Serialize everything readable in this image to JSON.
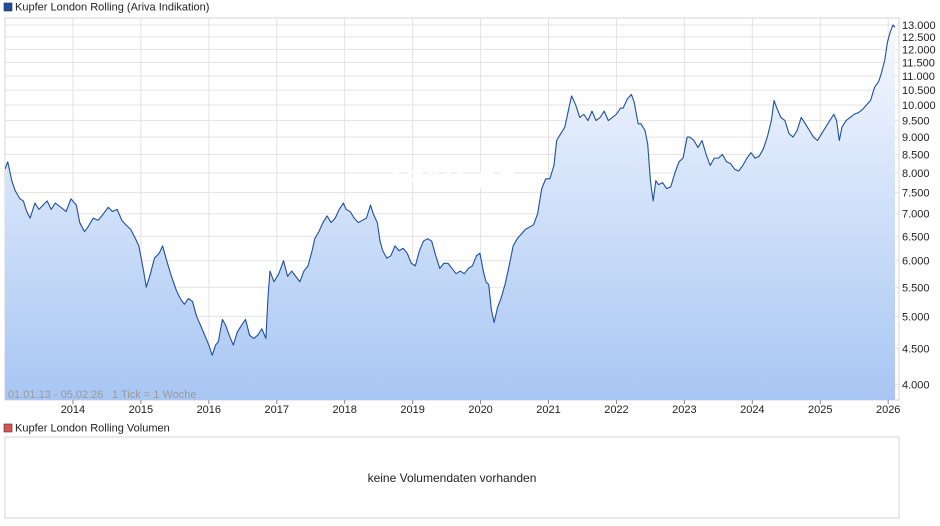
{
  "price_panel": {
    "legend_label": "Kupfer London Rolling (Ariva Indikation)",
    "legend_color": "#1f4f9c",
    "info_text": "01.01.13 - 05.02.26",
    "tick_text": "1 Tick = 1 Woche",
    "watermark": "ARIVA.DE"
  },
  "volume_panel": {
    "legend_label": "Kupfer London Rolling Volumen",
    "legend_color": "#d9534f",
    "message": "keine Volumendaten vorhanden"
  },
  "chart_data": {
    "type": "area",
    "x_tick_labels": [
      "2014",
      "2015",
      "2016",
      "2017",
      "2018",
      "2019",
      "2020",
      "2021",
      "2022",
      "2023",
      "2024",
      "2025",
      "2026"
    ],
    "y_tick_labels": [
      "4.000",
      "4.500",
      "5.000",
      "5.500",
      "6.000",
      "6.500",
      "7.000",
      "7.500",
      "8.000",
      "8.500",
      "9.000",
      "9.500",
      "10.000",
      "10.500",
      "11.000",
      "11.500",
      "12.000",
      "12.500",
      "13.000"
    ],
    "y_scale": "log",
    "ylim": [
      3800,
      13300
    ],
    "xlim": [
      2013.0,
      2026.1
    ],
    "grid": true,
    "line_color": "#1f4f9c",
    "fill_top_color": "#f6f9ff",
    "fill_bottom_color": "#a8c6f3",
    "series": [
      {
        "name": "Kupfer London Rolling (Ariva Indikation)",
        "points": [
          [
            2013.0,
            8100
          ],
          [
            2013.04,
            8300
          ],
          [
            2013.1,
            7800
          ],
          [
            2013.15,
            7550
          ],
          [
            2013.22,
            7350
          ],
          [
            2013.27,
            7300
          ],
          [
            2013.32,
            7050
          ],
          [
            2013.37,
            6900
          ],
          [
            2013.44,
            7250
          ],
          [
            2013.5,
            7100
          ],
          [
            2013.56,
            7200
          ],
          [
            2013.62,
            7300
          ],
          [
            2013.68,
            7100
          ],
          [
            2013.74,
            7250
          ],
          [
            2013.82,
            7150
          ],
          [
            2013.9,
            7050
          ],
          [
            2013.97,
            7350
          ],
          [
            2014.05,
            7200
          ],
          [
            2014.1,
            6800
          ],
          [
            2014.17,
            6600
          ],
          [
            2014.22,
            6700
          ],
          [
            2014.3,
            6900
          ],
          [
            2014.37,
            6850
          ],
          [
            2014.45,
            7000
          ],
          [
            2014.52,
            7150
          ],
          [
            2014.58,
            7050
          ],
          [
            2014.65,
            7100
          ],
          [
            2014.72,
            6850
          ],
          [
            2014.78,
            6750
          ],
          [
            2014.85,
            6650
          ],
          [
            2014.92,
            6450
          ],
          [
            2014.97,
            6300
          ],
          [
            2015.04,
            5800
          ],
          [
            2015.08,
            5500
          ],
          [
            2015.14,
            5750
          ],
          [
            2015.2,
            6050
          ],
          [
            2015.27,
            6150
          ],
          [
            2015.32,
            6300
          ],
          [
            2015.38,
            6000
          ],
          [
            2015.45,
            5700
          ],
          [
            2015.52,
            5450
          ],
          [
            2015.58,
            5300
          ],
          [
            2015.64,
            5200
          ],
          [
            2015.7,
            5300
          ],
          [
            2015.76,
            5250
          ],
          [
            2015.82,
            5000
          ],
          [
            2015.88,
            4850
          ],
          [
            2015.94,
            4700
          ],
          [
            2016.0,
            4550
          ],
          [
            2016.05,
            4400
          ],
          [
            2016.1,
            4550
          ],
          [
            2016.14,
            4600
          ],
          [
            2016.2,
            4950
          ],
          [
            2016.25,
            4850
          ],
          [
            2016.3,
            4700
          ],
          [
            2016.36,
            4550
          ],
          [
            2016.42,
            4750
          ],
          [
            2016.48,
            4850
          ],
          [
            2016.54,
            4950
          ],
          [
            2016.6,
            4700
          ],
          [
            2016.66,
            4650
          ],
          [
            2016.72,
            4700
          ],
          [
            2016.78,
            4800
          ],
          [
            2016.84,
            4650
          ],
          [
            2016.87,
            5300
          ],
          [
            2016.9,
            5800
          ],
          [
            2016.96,
            5600
          ],
          [
            2017.03,
            5750
          ],
          [
            2017.1,
            6000
          ],
          [
            2017.16,
            5700
          ],
          [
            2017.22,
            5800
          ],
          [
            2017.28,
            5700
          ],
          [
            2017.34,
            5600
          ],
          [
            2017.4,
            5800
          ],
          [
            2017.46,
            5900
          ],
          [
            2017.52,
            6200
          ],
          [
            2017.56,
            6450
          ],
          [
            2017.62,
            6600
          ],
          [
            2017.68,
            6800
          ],
          [
            2017.74,
            6950
          ],
          [
            2017.8,
            6800
          ],
          [
            2017.86,
            6900
          ],
          [
            2017.92,
            7100
          ],
          [
            2017.98,
            7250
          ],
          [
            2018.02,
            7100
          ],
          [
            2018.08,
            7050
          ],
          [
            2018.14,
            6900
          ],
          [
            2018.2,
            6800
          ],
          [
            2018.26,
            6850
          ],
          [
            2018.32,
            6900
          ],
          [
            2018.38,
            7200
          ],
          [
            2018.42,
            7000
          ],
          [
            2018.48,
            6800
          ],
          [
            2018.52,
            6400
          ],
          [
            2018.56,
            6200
          ],
          [
            2018.62,
            6050
          ],
          [
            2018.68,
            6100
          ],
          [
            2018.74,
            6300
          ],
          [
            2018.8,
            6200
          ],
          [
            2018.86,
            6250
          ],
          [
            2018.92,
            6150
          ],
          [
            2018.98,
            5950
          ],
          [
            2019.04,
            5900
          ],
          [
            2019.1,
            6200
          ],
          [
            2019.16,
            6400
          ],
          [
            2019.22,
            6450
          ],
          [
            2019.28,
            6400
          ],
          [
            2019.34,
            6100
          ],
          [
            2019.4,
            5850
          ],
          [
            2019.46,
            5950
          ],
          [
            2019.52,
            5950
          ],
          [
            2019.58,
            5850
          ],
          [
            2019.64,
            5750
          ],
          [
            2019.7,
            5800
          ],
          [
            2019.76,
            5750
          ],
          [
            2019.82,
            5850
          ],
          [
            2019.88,
            5900
          ],
          [
            2019.94,
            6100
          ],
          [
            2019.99,
            6150
          ],
          [
            2020.04,
            5800
          ],
          [
            2020.08,
            5600
          ],
          [
            2020.12,
            5550
          ],
          [
            2020.16,
            5100
          ],
          [
            2020.2,
            4900
          ],
          [
            2020.25,
            5150
          ],
          [
            2020.3,
            5300
          ],
          [
            2020.36,
            5550
          ],
          [
            2020.42,
            5900
          ],
          [
            2020.48,
            6300
          ],
          [
            2020.54,
            6450
          ],
          [
            2020.6,
            6550
          ],
          [
            2020.66,
            6650
          ],
          [
            2020.72,
            6700
          ],
          [
            2020.78,
            6750
          ],
          [
            2020.84,
            7000
          ],
          [
            2020.9,
            7600
          ],
          [
            2020.96,
            7850
          ],
          [
            2021.02,
            7850
          ],
          [
            2021.08,
            8200
          ],
          [
            2021.12,
            8900
          ],
          [
            2021.18,
            9100
          ],
          [
            2021.24,
            9300
          ],
          [
            2021.3,
            9900
          ],
          [
            2021.34,
            10300
          ],
          [
            2021.4,
            10000
          ],
          [
            2021.46,
            9600
          ],
          [
            2021.52,
            9700
          ],
          [
            2021.58,
            9500
          ],
          [
            2021.64,
            9800
          ],
          [
            2021.7,
            9500
          ],
          [
            2021.76,
            9600
          ],
          [
            2021.82,
            9800
          ],
          [
            2021.88,
            9500
          ],
          [
            2021.94,
            9600
          ],
          [
            2022.0,
            9700
          ],
          [
            2022.06,
            9900
          ],
          [
            2022.1,
            9900
          ],
          [
            2022.16,
            10200
          ],
          [
            2022.22,
            10350
          ],
          [
            2022.26,
            10100
          ],
          [
            2022.32,
            9400
          ],
          [
            2022.36,
            9400
          ],
          [
            2022.42,
            9200
          ],
          [
            2022.46,
            8800
          ],
          [
            2022.5,
            7800
          ],
          [
            2022.54,
            7300
          ],
          [
            2022.58,
            7800
          ],
          [
            2022.62,
            7700
          ],
          [
            2022.68,
            7750
          ],
          [
            2022.74,
            7600
          ],
          [
            2022.8,
            7650
          ],
          [
            2022.86,
            8000
          ],
          [
            2022.92,
            8300
          ],
          [
            2022.98,
            8400
          ],
          [
            2023.04,
            9000
          ],
          [
            2023.08,
            9000
          ],
          [
            2023.14,
            8900
          ],
          [
            2023.2,
            8700
          ],
          [
            2023.26,
            8900
          ],
          [
            2023.32,
            8500
          ],
          [
            2023.38,
            8200
          ],
          [
            2023.44,
            8400
          ],
          [
            2023.5,
            8400
          ],
          [
            2023.56,
            8500
          ],
          [
            2023.62,
            8300
          ],
          [
            2023.68,
            8250
          ],
          [
            2023.74,
            8100
          ],
          [
            2023.8,
            8050
          ],
          [
            2023.86,
            8200
          ],
          [
            2023.92,
            8400
          ],
          [
            2023.98,
            8550
          ],
          [
            2024.04,
            8400
          ],
          [
            2024.1,
            8450
          ],
          [
            2024.16,
            8650
          ],
          [
            2024.22,
            9000
          ],
          [
            2024.28,
            9500
          ],
          [
            2024.32,
            10150
          ],
          [
            2024.36,
            9900
          ],
          [
            2024.42,
            9600
          ],
          [
            2024.48,
            9500
          ],
          [
            2024.54,
            9100
          ],
          [
            2024.6,
            9000
          ],
          [
            2024.66,
            9200
          ],
          [
            2024.72,
            9600
          ],
          [
            2024.78,
            9400
          ],
          [
            2024.84,
            9200
          ],
          [
            2024.9,
            9000
          ],
          [
            2024.96,
            8900
          ],
          [
            2025.02,
            9100
          ],
          [
            2025.08,
            9300
          ],
          [
            2025.14,
            9500
          ],
          [
            2025.2,
            9700
          ],
          [
            2025.24,
            9500
          ],
          [
            2025.28,
            8900
          ],
          [
            2025.32,
            9300
          ],
          [
            2025.38,
            9500
          ],
          [
            2025.44,
            9600
          ],
          [
            2025.5,
            9700
          ],
          [
            2025.56,
            9750
          ],
          [
            2025.62,
            9850
          ],
          [
            2025.68,
            10000
          ],
          [
            2025.74,
            10150
          ],
          [
            2025.8,
            10600
          ],
          [
            2025.86,
            10800
          ],
          [
            2025.9,
            11100
          ],
          [
            2025.95,
            11600
          ],
          [
            2025.99,
            12300
          ],
          [
            2026.03,
            12700
          ],
          [
            2026.07,
            13000
          ],
          [
            2026.1,
            12900
          ]
        ]
      }
    ]
  }
}
